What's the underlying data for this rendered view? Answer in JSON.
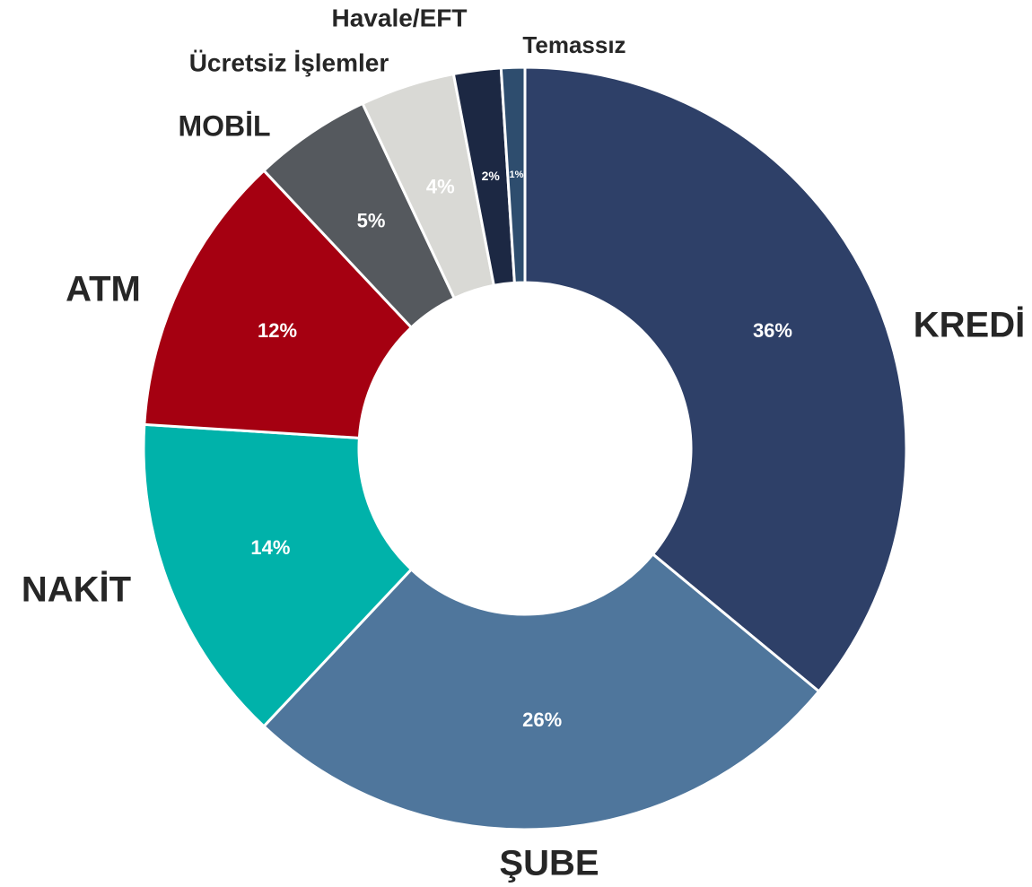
{
  "chart_data": {
    "type": "donut",
    "categories": [
      "KREDİ",
      "ŞUBE",
      "NAKİT",
      "ATM",
      "MOBİL",
      "Ücretsiz İşlemler",
      "Havale/EFT",
      "Temassız"
    ],
    "values": [
      36,
      26,
      14,
      12,
      5,
      4,
      2,
      1
    ],
    "value_labels": [
      "36%",
      "26%",
      "14%",
      "12%",
      "5%",
      "4%",
      "2%",
      "1%"
    ],
    "colors": [
      "#2e4068",
      "#4f769c",
      "#00b2aa",
      "#a50011",
      "#55595e",
      "#d9d9d5",
      "#1c2843",
      "#2e4d6e"
    ]
  }
}
